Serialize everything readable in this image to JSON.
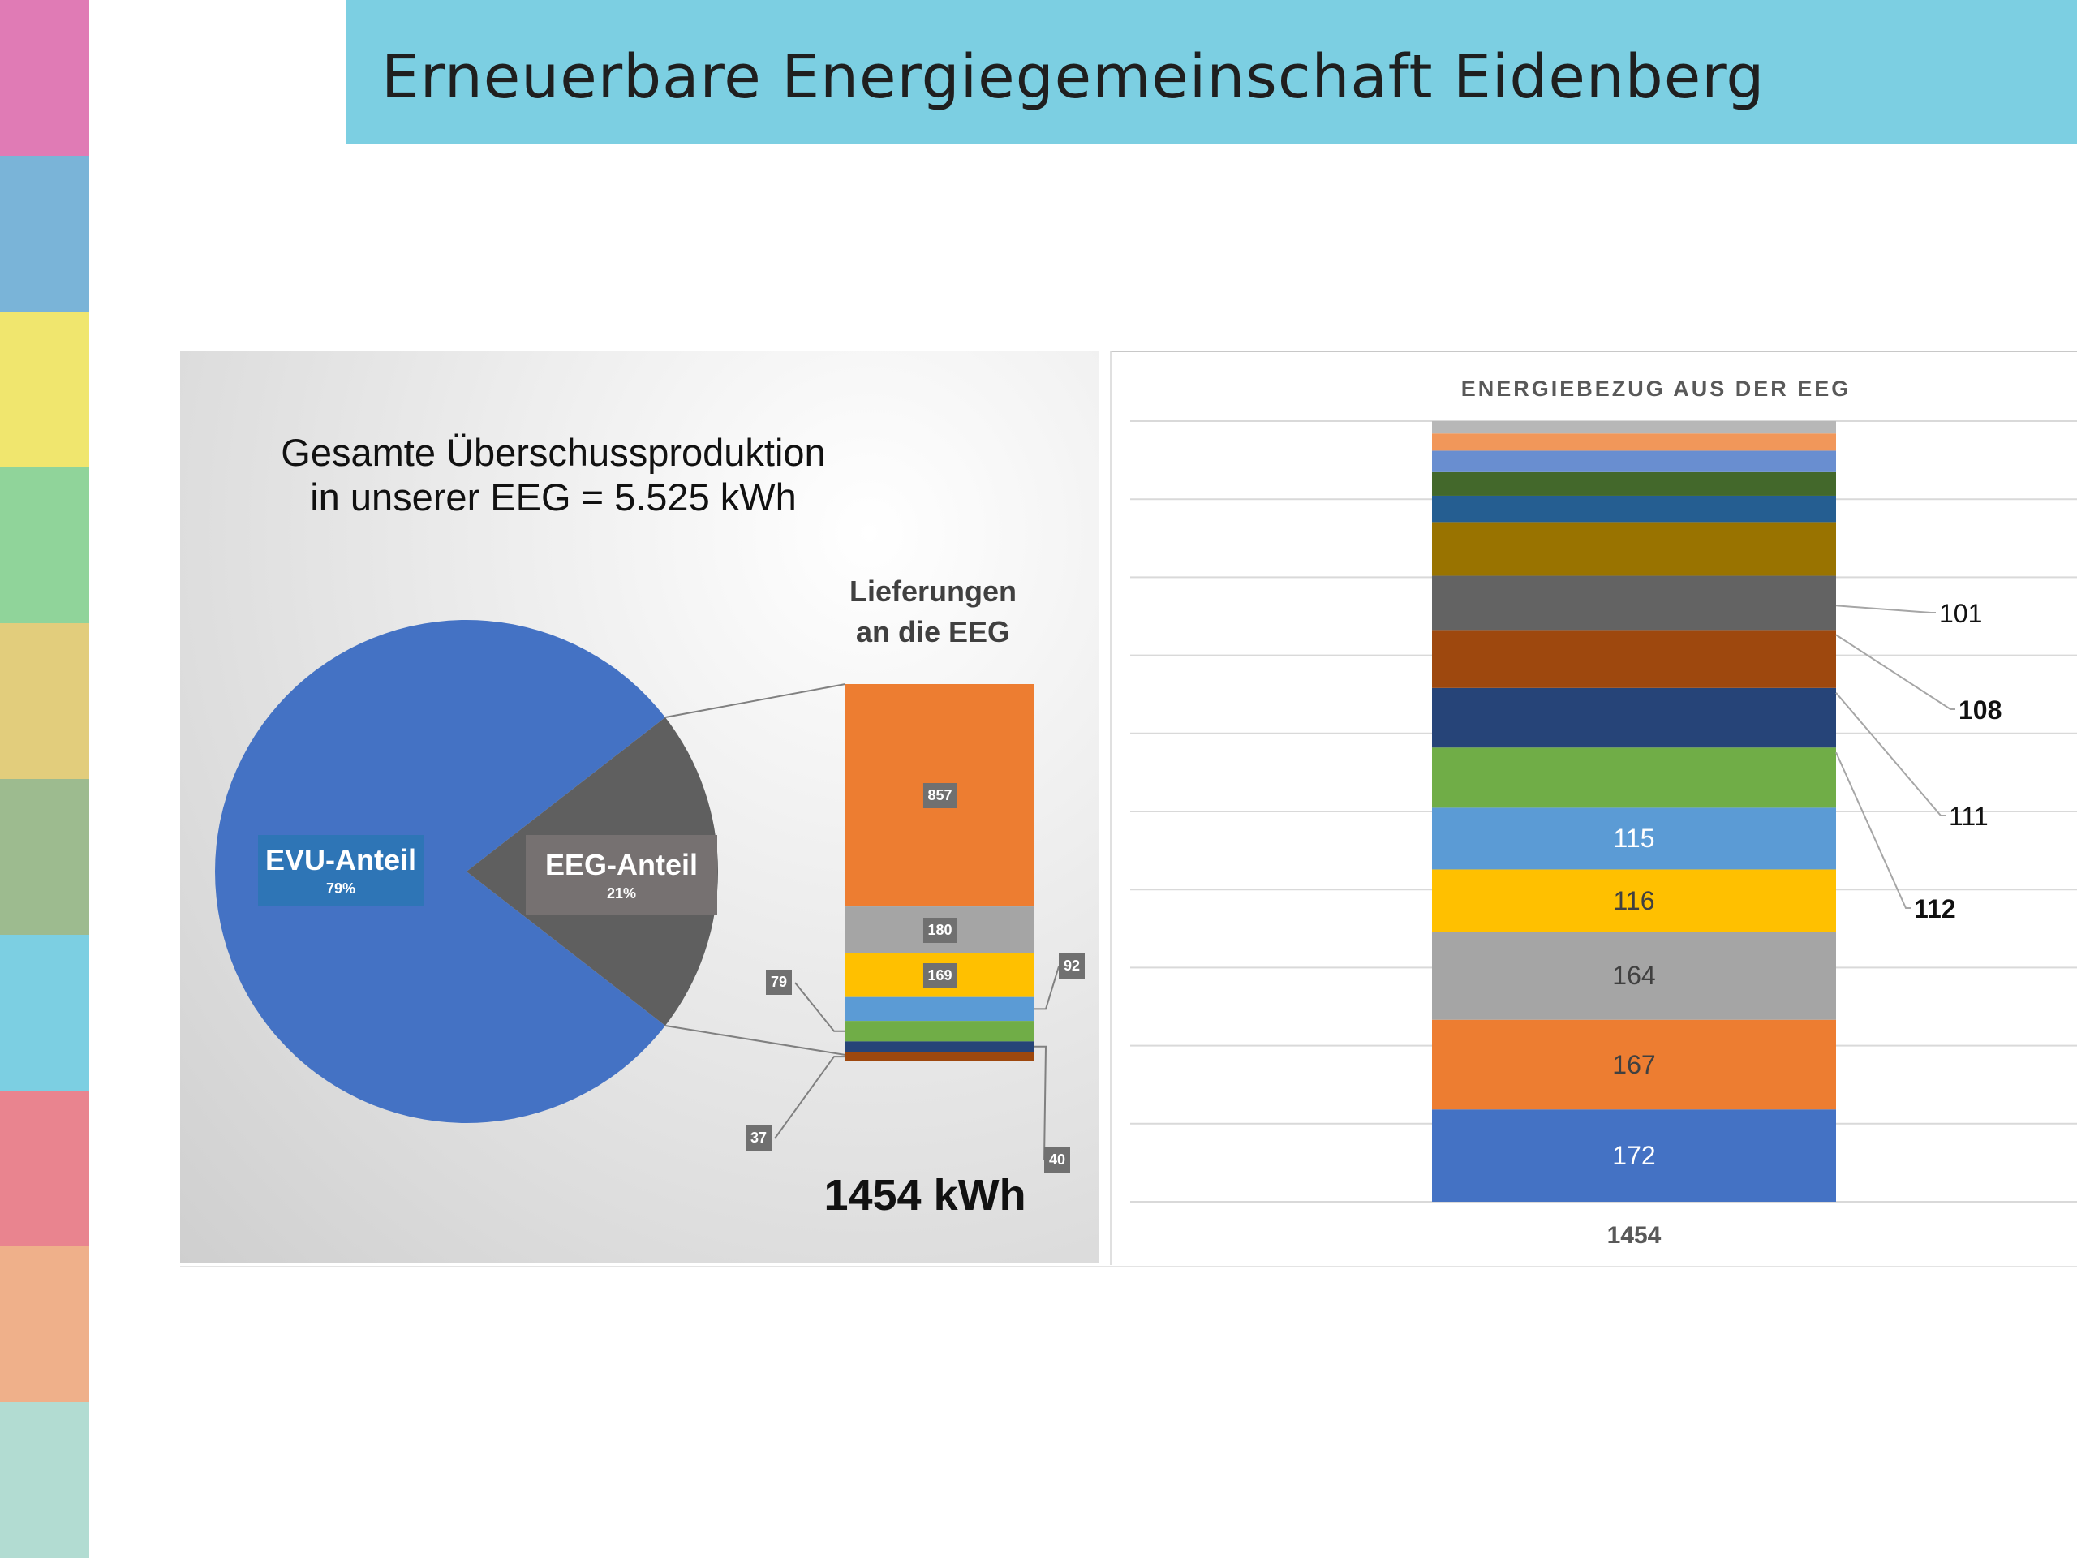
{
  "side_strip_colors": [
    "#e07bb5",
    "#7ab4d8",
    "#f0e66e",
    "#90d49a",
    "#e2cd7c",
    "#9dbb8f",
    "#7ccfe2",
    "#e9848f",
    "#efb08a",
    "#b2dcd2"
  ],
  "banner": {
    "title": "Erneuerbare Energiegemeinschaft Eidenberg",
    "color": "#7ccfe2"
  },
  "chart_data": [
    {
      "type": "pie",
      "title_line1": "Gesamte Überschussproduktion",
      "title_line2": "in unserer EEG = 5.525 kWh",
      "slices": [
        {
          "name": "EVU-Anteil",
          "percent_label": "79%",
          "value": 79,
          "color": "#4472c4"
        },
        {
          "name": "EEG-Anteil",
          "percent_label": "21%",
          "value": 21,
          "color": "#5f5f5f"
        }
      ]
    },
    {
      "type": "bar",
      "stacked": true,
      "title_line1": "Lieferungen",
      "title_line2": "an die EEG",
      "total_label": "1454 kWh",
      "segments": [
        {
          "value": 857,
          "label": "857",
          "color": "#ed7d31"
        },
        {
          "value": 180,
          "label": "180",
          "color": "#a5a5a5"
        },
        {
          "value": 169,
          "label": "169",
          "color": "#ffc000"
        },
        {
          "value": 92,
          "label": "92",
          "color": "#5b9bd5"
        },
        {
          "value": 79,
          "label": "79",
          "color": "#70ad47"
        },
        {
          "value": 40,
          "label": "40",
          "color": "#264478"
        },
        {
          "value": 37,
          "label": "37",
          "color": "#9e480e"
        }
      ]
    },
    {
      "type": "bar",
      "stacked": true,
      "title": "ENERGIEBEZUG AUS DER EEG",
      "category": "1454",
      "grid": true,
      "segments_bottom_to_top": [
        {
          "value": 172,
          "label": "172",
          "color": "#4472c4"
        },
        {
          "value": 167,
          "label": "167",
          "color": "#ed7d31"
        },
        {
          "value": 164,
          "label": "164",
          "color": "#a5a5a5"
        },
        {
          "value": 116,
          "label": "116",
          "color": "#ffc000"
        },
        {
          "value": 115,
          "label": "115",
          "color": "#5b9bd5"
        },
        {
          "value": 112,
          "label": "112",
          "color": "#70ad47",
          "callout": true,
          "bold": true
        },
        {
          "value": 111,
          "label": "111",
          "color": "#264478",
          "callout": true
        },
        {
          "value": 108,
          "label": "108",
          "color": "#9e480e",
          "callout": true,
          "bold": true
        },
        {
          "value": 101,
          "label": "101",
          "color": "#636363",
          "callout": true
        },
        {
          "value": 100,
          "color": "#997300"
        },
        {
          "value": 49,
          "color": "#255e91"
        },
        {
          "value": 44,
          "color": "#43682b"
        },
        {
          "value": 40,
          "color": "#698ed0"
        },
        {
          "value": 32,
          "color": "#f1975a"
        },
        {
          "value": 23,
          "color": "#b7b7b7"
        }
      ]
    }
  ]
}
